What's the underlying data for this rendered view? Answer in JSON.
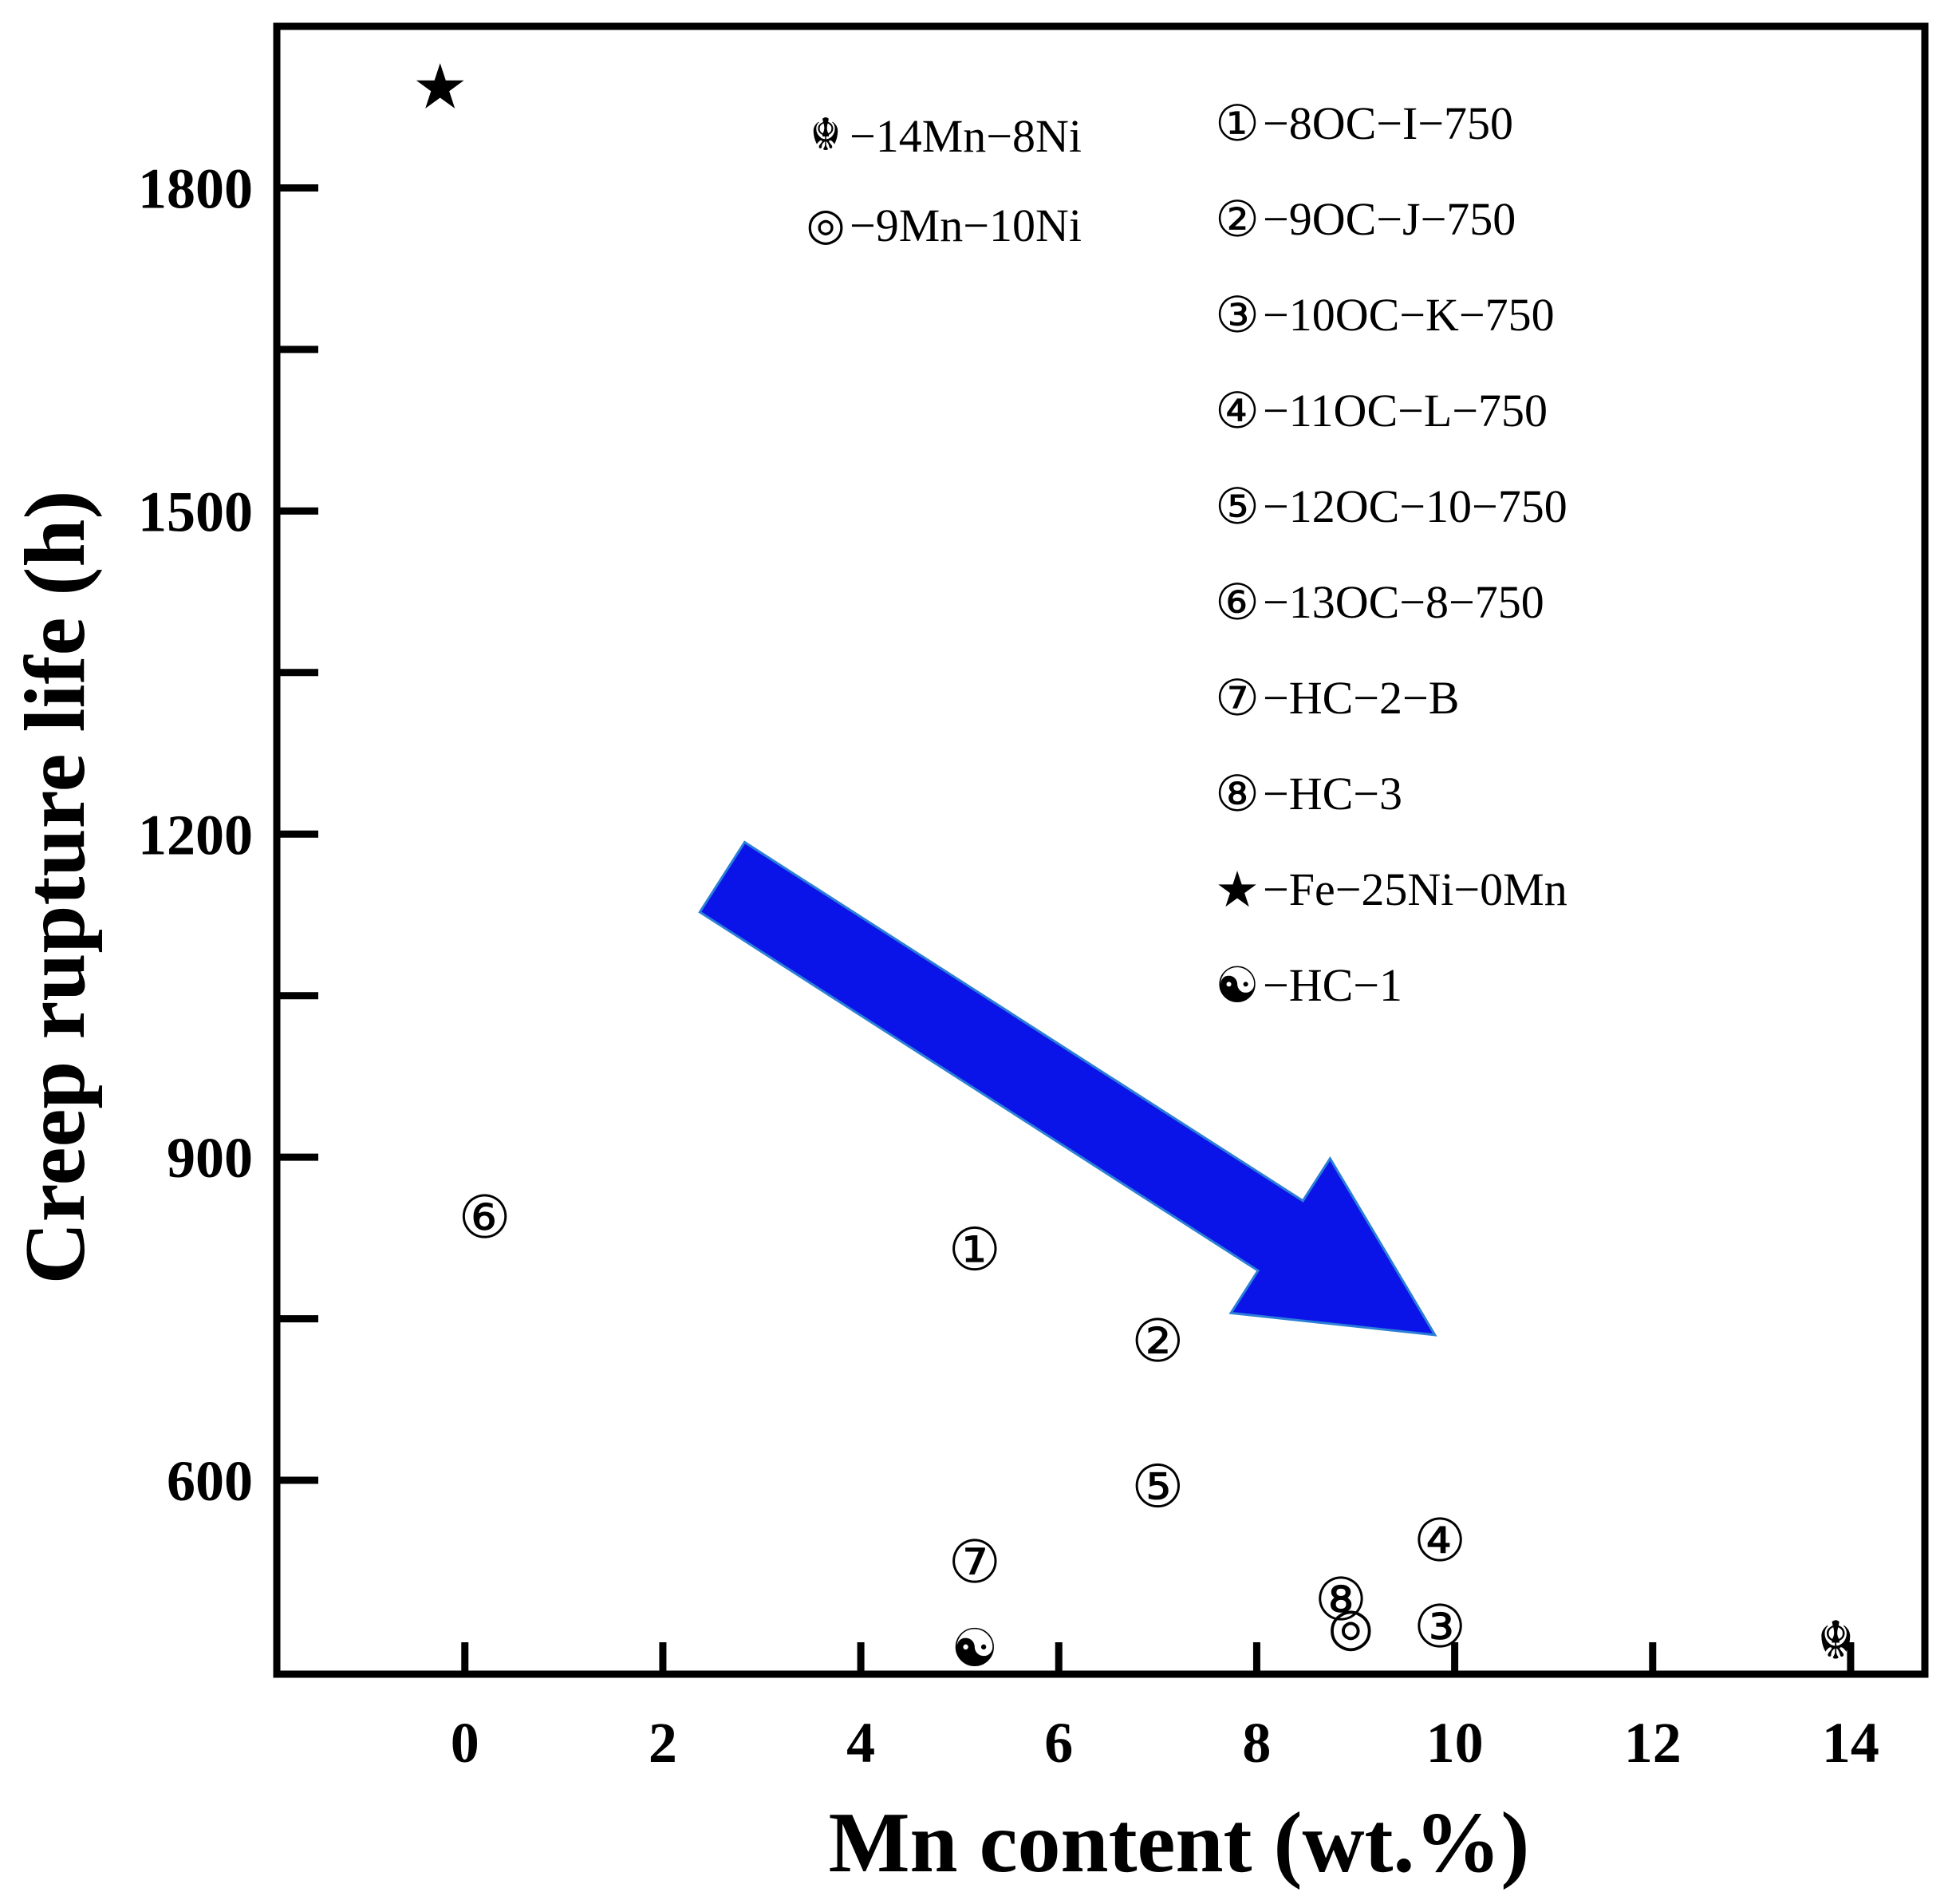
{
  "chart_data": {
    "type": "scatter",
    "title": "",
    "xlabel": "Mn content (wt.%)",
    "ylabel": "Creep rupture life (h)",
    "xlim": [
      -1.9,
      14.75
    ],
    "ylim": [
      420,
      1950
    ],
    "x_ticks": [
      0,
      2,
      4,
      6,
      8,
      10,
      12,
      14
    ],
    "y_ticks": [
      600,
      900,
      1200,
      1500,
      1800
    ],
    "y_minor_ticks": [
      750,
      1050,
      1350,
      1650
    ],
    "grid": false,
    "legend_position": "top-right (inside plot)",
    "arrow": {
      "from": [
        2.6,
        1160
      ],
      "to": [
        9.8,
        735
      ],
      "color": "#0a14e8",
      "meaning": "decreasing trend"
    },
    "points": [
      {
        "symbol": "★",
        "legend": "−Fe−25Ni−0Mn",
        "x": -0.25,
        "y": 1895
      },
      {
        "symbol": "⑥",
        "legend": "−13OC−8−750",
        "x": 0.2,
        "y": 845
      },
      {
        "symbol": "①",
        "legend": "−8OC−I−750",
        "x": 5.15,
        "y": 815
      },
      {
        "symbol": "②",
        "legend": "−9OC−J−750",
        "x": 7.0,
        "y": 730
      },
      {
        "symbol": "⑤",
        "legend": "−12OC−10−750",
        "x": 7.0,
        "y": 595
      },
      {
        "symbol": "⑦",
        "legend": "−HC−2−B",
        "x": 5.15,
        "y": 525
      },
      {
        "symbol": "☯",
        "legend": "−HC−1",
        "x": 5.15,
        "y": 445
      },
      {
        "symbol": "⑧",
        "legend": "−HC−3",
        "x": 8.85,
        "y": 490
      },
      {
        "symbol": "◎",
        "legend": "−9Mn−10Ni",
        "x": 8.95,
        "y": 465
      },
      {
        "symbol": "③",
        "legend": "−10OC−K−750",
        "x": 9.85,
        "y": 465
      },
      {
        "symbol": "④",
        "legend": "−11OC−L−750",
        "x": 9.85,
        "y": 545
      },
      {
        "symbol": "☬",
        "legend": "−14Mn−8Ni",
        "x": 13.85,
        "y": 452
      }
    ],
    "legend_left": [
      {
        "symbol": "☬",
        "label": "−14Mn−8Ni"
      },
      {
        "symbol": "◎",
        "label": "−9Mn−10Ni"
      }
    ],
    "legend_right": [
      {
        "symbol": "①",
        "label": "−8OC−I−750"
      },
      {
        "symbol": "②",
        "label": "−9OC−J−750"
      },
      {
        "symbol": "③",
        "label": "−10OC−K−750"
      },
      {
        "symbol": "④",
        "label": "−11OC−L−750"
      },
      {
        "symbol": "⑤",
        "label": "−12OC−10−750"
      },
      {
        "symbol": "⑥",
        "label": "−13OC−8−750"
      },
      {
        "symbol": "⑦",
        "label": "−HC−2−B"
      },
      {
        "symbol": "⑧",
        "label": "−HC−3"
      },
      {
        "symbol": "★",
        "label": "−Fe−25Ni−0Mn"
      },
      {
        "symbol": "☯",
        "label": "−HC−1"
      }
    ]
  }
}
